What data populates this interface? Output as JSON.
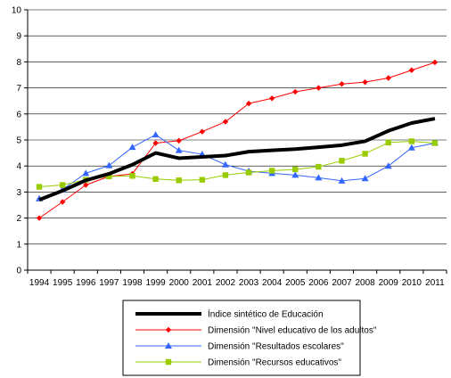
{
  "chart_data": {
    "type": "line",
    "x": [
      1994,
      1995,
      1996,
      1997,
      1998,
      1999,
      2000,
      2001,
      2002,
      2003,
      2004,
      2005,
      2006,
      2007,
      2008,
      2009,
      2010,
      2011
    ],
    "ylim": [
      0,
      10
    ],
    "yticks": [
      0,
      1,
      2,
      3,
      4,
      5,
      6,
      7,
      8,
      9,
      10
    ],
    "grid": true,
    "legend_position": "bottom",
    "series": [
      {
        "name": "Índice sintético de Educación",
        "color": "#000000",
        "marker": "none",
        "values": [
          2.7,
          3.05,
          3.45,
          3.7,
          4.05,
          4.5,
          4.3,
          4.35,
          4.4,
          4.55,
          4.6,
          4.65,
          4.72,
          4.8,
          4.95,
          5.35,
          5.65,
          5.82
        ]
      },
      {
        "name": "Dimensión \"Nivel educativo de los adultos\"",
        "color": "#ff0000",
        "marker": "diamond",
        "values": [
          2.0,
          2.62,
          3.27,
          3.6,
          3.7,
          4.88,
          4.97,
          5.32,
          5.7,
          6.4,
          6.6,
          6.85,
          7.0,
          7.15,
          7.22,
          7.38,
          7.68,
          7.98
        ]
      },
      {
        "name": "Dimensión \"Resultados escolares\"",
        "color": "#3366ff",
        "marker": "triangle",
        "values": [
          2.75,
          3.1,
          3.72,
          4.02,
          4.72,
          5.2,
          4.6,
          4.45,
          4.05,
          3.8,
          3.72,
          3.65,
          3.55,
          3.43,
          3.52,
          4.0,
          4.7,
          4.88
        ]
      },
      {
        "name": "Dimensión \"Recursos educativos\"",
        "color": "#99cc00",
        "marker": "square",
        "values": [
          3.2,
          3.27,
          3.47,
          3.6,
          3.62,
          3.5,
          3.45,
          3.47,
          3.65,
          3.75,
          3.82,
          3.87,
          3.97,
          4.2,
          4.47,
          4.9,
          4.95,
          4.88
        ]
      }
    ]
  }
}
